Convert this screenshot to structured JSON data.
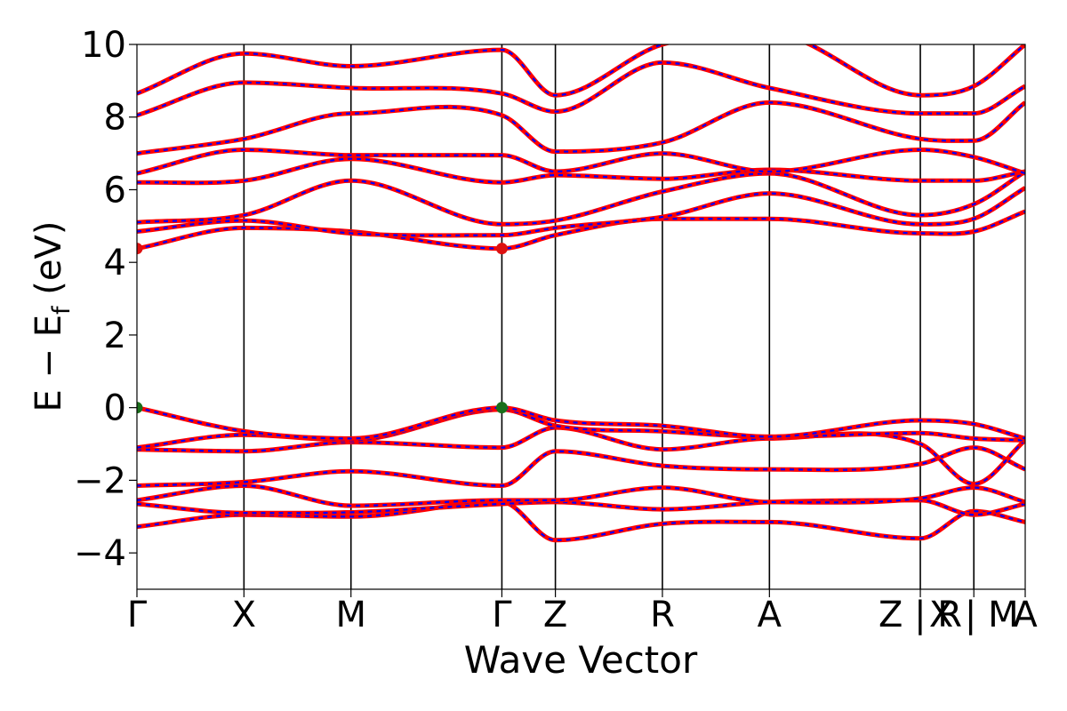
{
  "chart_data": {
    "type": "line",
    "title": "",
    "xlabel": "Wave Vector",
    "ylabel": "E − E_f (eV)",
    "ylabel_parts": {
      "prefix": "E − E",
      "sub": "f",
      "suffix": " (eV)"
    },
    "ylim": [
      -5,
      10
    ],
    "yticks": [
      -4,
      -2,
      0,
      2,
      4,
      6,
      8,
      10
    ],
    "ytick_labels": [
      "−4",
      "−2",
      "0",
      "2",
      "4",
      "6",
      "8",
      "10"
    ],
    "grid": false,
    "legend": "none",
    "xlim": [
      0,
      8.3
    ],
    "kpoints": [
      {
        "label": "Γ",
        "x": 0.0
      },
      {
        "label": "X",
        "x": 1.0
      },
      {
        "label": "M",
        "x": 2.0
      },
      {
        "label": "Γ",
        "x": 3.41
      },
      {
        "label": "Z",
        "x": 3.91
      },
      {
        "label": "R",
        "x": 4.91
      },
      {
        "label": "A",
        "x": 5.91
      },
      {
        "label": "Z | R",
        "x": 7.32
      },
      {
        "label": "X | M",
        "x": 7.82
      },
      {
        "label": "A",
        "x": 8.3
      }
    ],
    "vertical_lines_x": [
      1.0,
      2.0,
      3.41,
      3.91,
      4.91,
      5.91,
      7.32,
      7.82
    ],
    "colors": {
      "spin_up": "#ff0000",
      "spin_down": "#0000ff",
      "vbm": "#1a6e1a",
      "cbm": "#dd1111"
    },
    "series_style": "red solid (spin up) overlaid with blue dashed (spin down)",
    "bands": [
      {
        "x": [
          0,
          1.0,
          2.0,
          3.41,
          3.91,
          4.91,
          5.91,
          7.32,
          7.82,
          8.3
        ],
        "y": [
          -3.28,
          -2.95,
          -3.0,
          -2.6,
          -3.65,
          -3.2,
          -3.15,
          -3.6,
          -2.85,
          -3.15
        ]
      },
      {
        "x": [
          0,
          1.0,
          2.0,
          3.41,
          3.91,
          4.91,
          5.91,
          7.32,
          7.82,
          8.3
        ],
        "y": [
          -2.65,
          -2.9,
          -2.88,
          -2.65,
          -2.6,
          -2.8,
          -2.6,
          -2.55,
          -2.95,
          -2.65
        ]
      },
      {
        "x": [
          0,
          1.0,
          2.0,
          3.41,
          3.91,
          4.91,
          5.91,
          7.32,
          7.82,
          8.3
        ],
        "y": [
          -2.55,
          -2.15,
          -2.7,
          -2.55,
          -2.55,
          -2.2,
          -2.6,
          -2.5,
          -2.2,
          -2.6
        ]
      },
      {
        "x": [
          0,
          1.0,
          2.0,
          3.41,
          3.91,
          4.91,
          5.91,
          7.32,
          7.82,
          8.3
        ],
        "y": [
          -2.15,
          -2.05,
          -1.75,
          -2.15,
          -1.2,
          -1.6,
          -1.7,
          -1.55,
          -1.1,
          -1.7
        ]
      },
      {
        "x": [
          0,
          1.0,
          2.0,
          3.41,
          3.91,
          4.91,
          5.91,
          7.32,
          7.82,
          8.3
        ],
        "y": [
          -1.15,
          -1.2,
          -0.95,
          -1.1,
          -0.55,
          -1.15,
          -0.85,
          -1.0,
          -2.1,
          -0.9
        ]
      },
      {
        "x": [
          0,
          1.0,
          2.0,
          3.41,
          3.91,
          4.91,
          5.91,
          7.32,
          7.82,
          8.3
        ],
        "y": [
          -1.1,
          -0.75,
          -0.9,
          -0.05,
          -0.5,
          -0.65,
          -0.8,
          -0.7,
          -0.85,
          -0.9
        ]
      },
      {
        "x": [
          0,
          1.0,
          2.0,
          3.41,
          3.91,
          4.91,
          5.91,
          7.32,
          7.82,
          8.3
        ],
        "y": [
          0.0,
          -0.65,
          -0.85,
          0.0,
          -0.35,
          -0.5,
          -0.8,
          -0.35,
          -0.45,
          -0.85
        ]
      },
      {
        "x": [
          0,
          1.0,
          2.0,
          3.41,
          3.91,
          4.91,
          5.91,
          7.32,
          7.82,
          8.3
        ],
        "y": [
          4.38,
          4.95,
          4.85,
          4.38,
          4.75,
          5.2,
          5.2,
          4.8,
          4.85,
          5.4
        ]
      },
      {
        "x": [
          0,
          1.0,
          2.0,
          3.41,
          3.91,
          4.91,
          5.91,
          7.32,
          7.82,
          8.3
        ],
        "y": [
          4.85,
          5.15,
          4.8,
          4.75,
          4.95,
          5.25,
          5.9,
          5.05,
          5.2,
          6.05
        ]
      },
      {
        "x": [
          0,
          1.0,
          2.0,
          3.41,
          3.91,
          4.91,
          5.91,
          7.32,
          7.82,
          8.3
        ],
        "y": [
          5.1,
          5.3,
          6.25,
          5.05,
          5.15,
          5.95,
          6.45,
          5.3,
          5.6,
          6.5
        ]
      },
      {
        "x": [
          0,
          1.0,
          2.0,
          3.41,
          3.91,
          4.91,
          5.91,
          7.32,
          7.82,
          8.3
        ],
        "y": [
          6.2,
          6.25,
          6.85,
          6.2,
          6.4,
          6.3,
          6.55,
          6.25,
          6.25,
          6.5
        ]
      },
      {
        "x": [
          0,
          1.0,
          2.0,
          3.41,
          3.91,
          4.91,
          5.91,
          7.32,
          7.82,
          8.3
        ],
        "y": [
          6.45,
          7.1,
          6.95,
          6.95,
          6.5,
          7.0,
          6.5,
          7.1,
          6.9,
          6.45
        ]
      },
      {
        "x": [
          0,
          1.0,
          2.0,
          3.41,
          3.91,
          4.91,
          5.91,
          7.32,
          7.82,
          8.3
        ],
        "y": [
          7.0,
          7.4,
          8.1,
          8.05,
          7.05,
          7.3,
          8.4,
          7.4,
          7.35,
          8.4
        ]
      },
      {
        "x": [
          0,
          1.0,
          2.0,
          3.41,
          3.91,
          4.91,
          5.91,
          7.32,
          7.82,
          8.3
        ],
        "y": [
          8.05,
          8.95,
          8.8,
          8.65,
          8.15,
          9.5,
          8.8,
          8.1,
          8.1,
          8.85
        ]
      },
      {
        "x": [
          0,
          1.0,
          2.0,
          3.41,
          3.91,
          4.91,
          5.91,
          7.32,
          7.82,
          8.3
        ],
        "y": [
          8.65,
          9.75,
          9.4,
          9.85,
          8.6,
          10.0,
          10.3,
          8.6,
          8.85,
          10.0
        ]
      }
    ],
    "markers": [
      {
        "name": "VBM",
        "x": 0.0,
        "y": 0.0,
        "color_key": "vbm"
      },
      {
        "name": "VBM",
        "x": 3.41,
        "y": 0.0,
        "color_key": "vbm"
      },
      {
        "name": "CBM",
        "x": 0.0,
        "y": 4.38,
        "color_key": "cbm"
      },
      {
        "name": "CBM",
        "x": 3.41,
        "y": 4.38,
        "color_key": "cbm"
      }
    ]
  }
}
